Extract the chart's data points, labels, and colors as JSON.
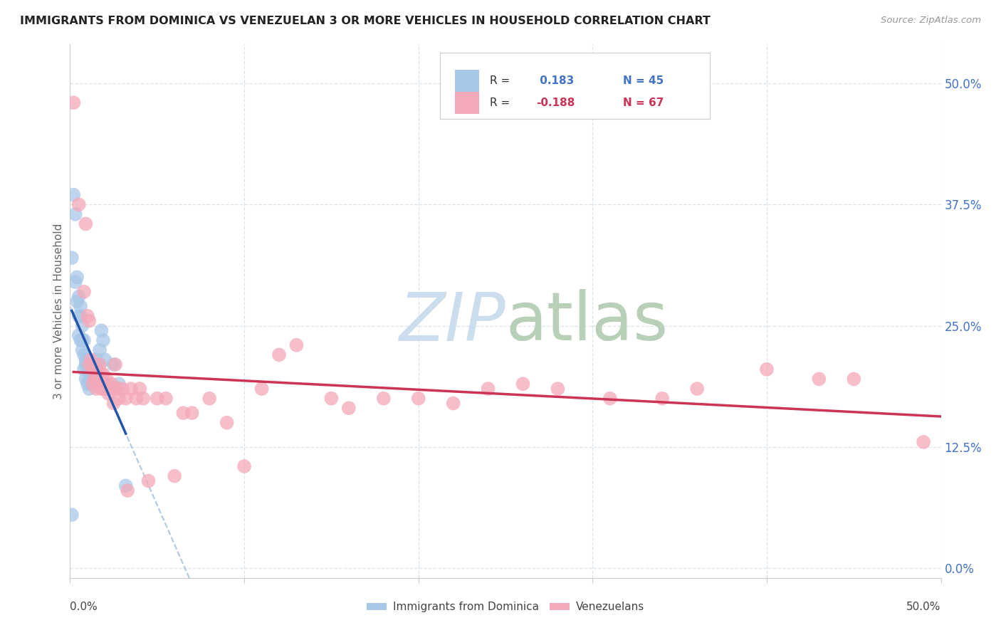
{
  "title": "IMMIGRANTS FROM DOMINICA VS VENEZUELAN 3 OR MORE VEHICLES IN HOUSEHOLD CORRELATION CHART",
  "source": "Source: ZipAtlas.com",
  "ylabel": "3 or more Vehicles in Household",
  "legend_label_blue": "Immigrants from Dominica",
  "legend_label_pink": "Venezuelans",
  "R_blue": 0.183,
  "N_blue": 45,
  "R_pink": -0.188,
  "N_pink": 67,
  "color_blue": "#a8c8e8",
  "color_pink": "#f4a8b8",
  "line_color_blue": "#2255aa",
  "line_color_pink": "#cc3355",
  "trendline_color_blue": "#b0c8e0",
  "watermark_color": "#ccdded",
  "grid_color": "#d8e4ec",
  "xrange": [
    0.0,
    0.5
  ],
  "yrange": [
    -0.01,
    0.54
  ],
  "ytick_values": [
    0.0,
    0.125,
    0.25,
    0.375,
    0.5
  ],
  "xtick_values": [
    0.0,
    0.1,
    0.2,
    0.3,
    0.4,
    0.5
  ],
  "blue_x": [
    0.001,
    0.002,
    0.003,
    0.003,
    0.004,
    0.004,
    0.005,
    0.005,
    0.005,
    0.006,
    0.006,
    0.006,
    0.007,
    0.007,
    0.007,
    0.008,
    0.008,
    0.008,
    0.009,
    0.009,
    0.009,
    0.01,
    0.01,
    0.01,
    0.011,
    0.011,
    0.011,
    0.012,
    0.012,
    0.012,
    0.013,
    0.013,
    0.014,
    0.015,
    0.015,
    0.016,
    0.017,
    0.018,
    0.019,
    0.02,
    0.022,
    0.025,
    0.028,
    0.032,
    0.001
  ],
  "blue_y": [
    0.055,
    0.385,
    0.365,
    0.295,
    0.3,
    0.275,
    0.28,
    0.26,
    0.24,
    0.27,
    0.26,
    0.235,
    0.25,
    0.235,
    0.225,
    0.235,
    0.22,
    0.205,
    0.215,
    0.21,
    0.195,
    0.21,
    0.205,
    0.19,
    0.205,
    0.195,
    0.185,
    0.2,
    0.195,
    0.19,
    0.205,
    0.195,
    0.195,
    0.215,
    0.205,
    0.21,
    0.225,
    0.245,
    0.235,
    0.215,
    0.19,
    0.21,
    0.19,
    0.085,
    0.32
  ],
  "pink_x": [
    0.002,
    0.005,
    0.008,
    0.009,
    0.01,
    0.011,
    0.011,
    0.012,
    0.013,
    0.013,
    0.014,
    0.014,
    0.015,
    0.015,
    0.016,
    0.016,
    0.017,
    0.018,
    0.018,
    0.019,
    0.019,
    0.02,
    0.02,
    0.021,
    0.022,
    0.022,
    0.023,
    0.024,
    0.025,
    0.026,
    0.026,
    0.027,
    0.028,
    0.03,
    0.032,
    0.033,
    0.035,
    0.038,
    0.04,
    0.042,
    0.045,
    0.05,
    0.055,
    0.06,
    0.065,
    0.07,
    0.08,
    0.09,
    0.1,
    0.11,
    0.12,
    0.13,
    0.15,
    0.16,
    0.18,
    0.2,
    0.22,
    0.24,
    0.26,
    0.28,
    0.31,
    0.34,
    0.36,
    0.4,
    0.43,
    0.45,
    0.49
  ],
  "pink_y": [
    0.48,
    0.375,
    0.285,
    0.355,
    0.26,
    0.255,
    0.21,
    0.215,
    0.205,
    0.19,
    0.195,
    0.205,
    0.195,
    0.185,
    0.2,
    0.205,
    0.21,
    0.2,
    0.185,
    0.2,
    0.185,
    0.19,
    0.185,
    0.195,
    0.185,
    0.18,
    0.185,
    0.19,
    0.17,
    0.21,
    0.185,
    0.185,
    0.175,
    0.185,
    0.175,
    0.08,
    0.185,
    0.175,
    0.185,
    0.175,
    0.09,
    0.175,
    0.175,
    0.095,
    0.16,
    0.16,
    0.175,
    0.15,
    0.105,
    0.185,
    0.22,
    0.23,
    0.175,
    0.165,
    0.175,
    0.175,
    0.17,
    0.185,
    0.19,
    0.185,
    0.175,
    0.175,
    0.185,
    0.205,
    0.195,
    0.195,
    0.13
  ]
}
